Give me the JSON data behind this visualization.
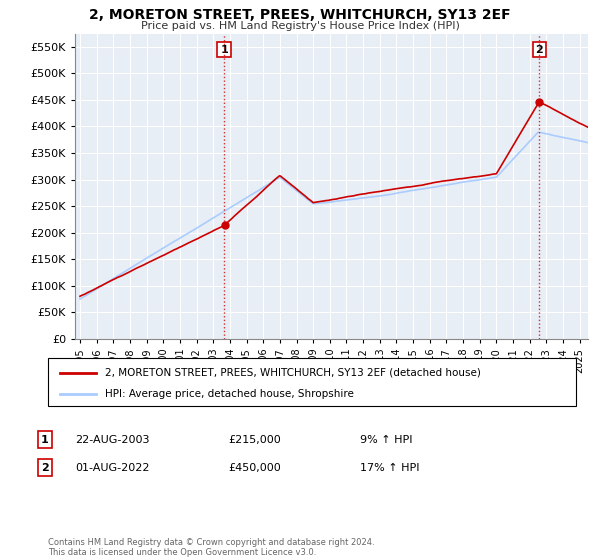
{
  "title": "2, MORETON STREET, PREES, WHITCHURCH, SY13 2EF",
  "subtitle": "Price paid vs. HM Land Registry's House Price Index (HPI)",
  "property_label": "2, MORETON STREET, PREES, WHITCHURCH, SY13 2EF (detached house)",
  "hpi_label": "HPI: Average price, detached house, Shropshire",
  "property_color": "#cc0000",
  "hpi_color": "#aaccff",
  "transaction1_date": "22-AUG-2003",
  "transaction1_price": "£215,000",
  "transaction1_hpi": "9% ↑ HPI",
  "transaction1_year": 2003.65,
  "transaction1_price_val": 215000,
  "transaction2_date": "01-AUG-2022",
  "transaction2_price": "£450,000",
  "transaction2_hpi": "17% ↑ HPI",
  "transaction2_year": 2022.58,
  "transaction2_price_val": 450000,
  "background_color": "#ffffff",
  "plot_bg_color": "#e8eef5",
  "grid_color": "#ffffff",
  "footer": "Contains HM Land Registry data © Crown copyright and database right 2024.\nThis data is licensed under the Open Government Licence v3.0.",
  "ylim": [
    0,
    575000
  ],
  "yticks": [
    0,
    50000,
    100000,
    150000,
    200000,
    250000,
    300000,
    350000,
    400000,
    450000,
    500000,
    550000
  ],
  "xlim_start": 1994.7,
  "xlim_end": 2025.5
}
